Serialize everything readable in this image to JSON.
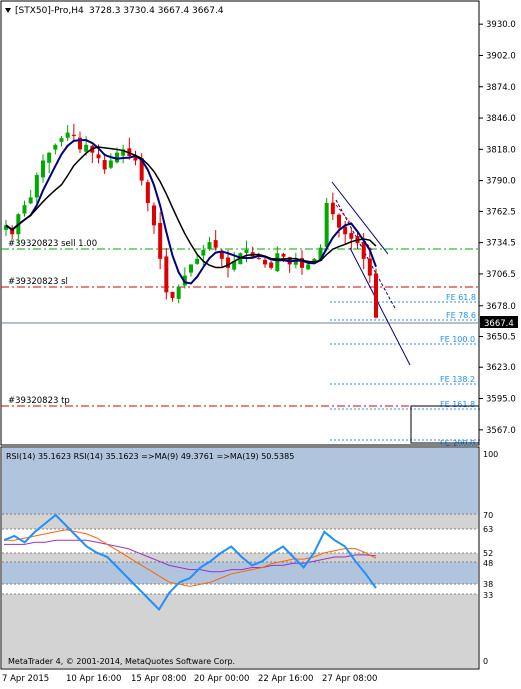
{
  "header": {
    "symbol_label": "[STX50]-Pro,H4",
    "ohlc": "3728.3 3730.4 3667.4 3667.4",
    "collapse_icon": "triangle-down-icon"
  },
  "price_axis": {
    "ticks": [
      "3930.0",
      "3902.0",
      "3874.0",
      "3846.0",
      "3818.0",
      "3790.0",
      "3762.5",
      "3734.5",
      "3706.5",
      "3678.0",
      "3650.5",
      "3623.0",
      "3595.0",
      "3567.0"
    ],
    "current_price": "3667.4"
  },
  "trade_lines": {
    "sell": "#39320823 sell 1.00",
    "sl": "#39320823 sl",
    "tp": "#39320823 tp"
  },
  "fibo_labels": [
    "FE 61.8",
    "FE 78.6",
    "FE 100.0",
    "FE 138.2",
    "FE 161.8",
    "FE 200.0"
  ],
  "rsi": {
    "header": "RSI(14) 35.1623  RSI(14) 35.1623  =>MA(9) 49.3761  =>MA(19) 50.5385",
    "levels": [
      "100",
      "70",
      "63",
      "52",
      "48",
      "38",
      "33",
      "0"
    ]
  },
  "time_axis": [
    "7 Apr 2015",
    "10 Apr 16:00",
    "15 Apr 08:00",
    "20 Apr 00:00",
    "22 Apr 16:00",
    "27 Apr 08:00"
  ],
  "copyright": "MetaTrader 4, © 2001-2014, MetaQuotes Software Corp.",
  "colors": {
    "bull": "#00aa00",
    "bear": "#dd0000",
    "ma_fast": "#000080",
    "ma_slow": "#000000",
    "rsi_line": "#1e90ff",
    "rsi_ma9": "#ff6600",
    "rsi_ma19": "#9932cc",
    "rsi_band": "#b0c4de"
  },
  "chart_data": {
    "type": "candlestick",
    "ylim": [
      3557,
      3940
    ],
    "close_path": [
      3750,
      3742,
      3760,
      3768,
      3775,
      3795,
      3808,
      3815,
      3822,
      3828,
      3833,
      3830,
      3818,
      3822,
      3815,
      3810,
      3800,
      3808,
      3815,
      3818,
      3812,
      3808,
      3790,
      3770,
      3750,
      3720,
      3690,
      3685,
      3695,
      3705,
      3715,
      3720,
      3728,
      3735,
      3730,
      3720,
      3712,
      3718,
      3725,
      3728,
      3722,
      3720,
      3715,
      3712,
      3725,
      3722,
      3715,
      3718,
      3712,
      3715,
      3720,
      3730,
      3770,
      3760,
      3748,
      3742,
      3738,
      3734,
      3720,
      3705,
      3667.4
    ],
    "rsi_values": [
      58,
      60,
      57,
      62,
      66,
      70,
      65,
      60,
      55,
      52,
      50,
      45,
      40,
      35,
      30,
      25,
      33,
      38,
      40,
      45,
      48,
      52,
      55,
      50,
      46,
      48,
      52,
      55,
      50,
      45,
      52,
      62,
      58,
      55,
      48,
      42,
      35.16
    ],
    "rsi_ma9": [
      58,
      58,
      59,
      60,
      61,
      62,
      63,
      62,
      61,
      59,
      56,
      53,
      50,
      47,
      44,
      41,
      38,
      37,
      36,
      37,
      38,
      40,
      42,
      43,
      44,
      45,
      47,
      48,
      49,
      49,
      50,
      52,
      53,
      54,
      54,
      52,
      49.38
    ],
    "rsi_ma19": [
      56,
      56,
      56,
      57,
      57,
      58,
      58,
      58,
      58,
      57,
      56,
      55,
      54,
      52,
      50,
      48,
      46,
      45,
      44,
      44,
      43,
      43,
      44,
      44,
      45,
      45,
      46,
      46,
      47,
      47,
      48,
      49,
      50,
      50,
      51,
      51,
      50.54
    ]
  }
}
